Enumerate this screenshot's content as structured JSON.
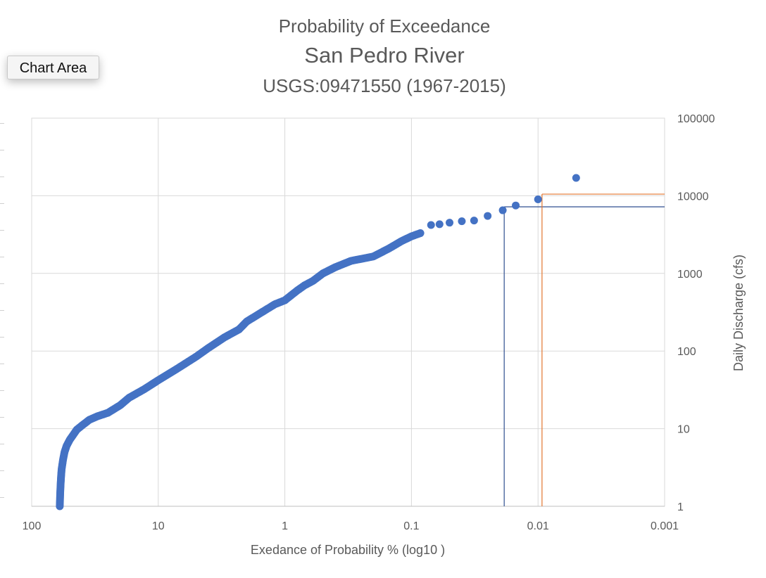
{
  "tooltip": {
    "label": "Chart Area"
  },
  "chart_data": {
    "type": "scatter",
    "title": [
      "Probability of Exceedance",
      "San Pedro River",
      "USGS:09471550 (1967-2015)"
    ],
    "xlabel": "Exedance of Probability % (log10 )",
    "ylabel": "Daily Discharge (cfs)",
    "x_scale": "log",
    "x_reversed": true,
    "y_scale": "log",
    "xlim": [
      100,
      0.001
    ],
    "ylim": [
      1,
      100000
    ],
    "x_tick_labels": [
      "100",
      "10",
      "1",
      "0.1",
      "0.01",
      "0.001"
    ],
    "x_tick_values": [
      100,
      10,
      1,
      0.1,
      0.01,
      0.001
    ],
    "y_tick_labels": [
      "1",
      "10",
      "100",
      "1000",
      "10000",
      "100000"
    ],
    "y_tick_values": [
      1,
      10,
      100,
      1000,
      10000,
      100000
    ],
    "y_axis_side": "right",
    "grid": true,
    "colors": {
      "points": "#4472c4",
      "blue_lines": "#2f4e8f",
      "orange_lines": "#e3762f",
      "grid": "#d9d9d9"
    },
    "series": [
      {
        "x": [
          60,
          59.5,
          59,
          58.5,
          58,
          56.5,
          55,
          53,
          50,
          47,
          44,
          40,
          35,
          30,
          25,
          20,
          17,
          13,
          10,
          7,
          5,
          4,
          3,
          2.3,
          2,
          1.5,
          1.2,
          1,
          0.8,
          0.7,
          0.6,
          0.5,
          0.4,
          0.3,
          0.2,
          0.15,
          0.12,
          0.1,
          0.085,
          0.07,
          0.06,
          0.05,
          0.04,
          0.032,
          0.025,
          0.019,
          0.015,
          0.01,
          0.005
        ],
        "y": [
          1,
          1.5,
          2,
          2.5,
          3,
          4,
          5,
          6,
          7.2,
          8.3,
          9.7,
          11,
          13,
          14.5,
          16,
          20,
          25,
          32,
          42,
          60,
          85,
          110,
          150,
          190,
          240,
          320,
          400,
          450,
          600,
          700,
          800,
          1000,
          1200,
          1450,
          1650,
          2100,
          2600,
          3000,
          3300,
          4200,
          4300,
          4500,
          4700,
          4800,
          5500,
          6500,
          7500,
          9000,
          17000
        ]
      },
      {
        "x": [
          0.0185,
          0.0185
        ],
        "y": [
          1,
          7200
        ]
      },
      {
        "x": [
          0.0185,
          0.001
        ],
        "y": [
          7200,
          7200
        ]
      },
      {
        "x": [
          0.0093,
          0.0093
        ],
        "y": [
          1,
          10500
        ]
      },
      {
        "x": [
          0.0093,
          0.001
        ],
        "y": [
          10500,
          10500
        ]
      }
    ]
  }
}
